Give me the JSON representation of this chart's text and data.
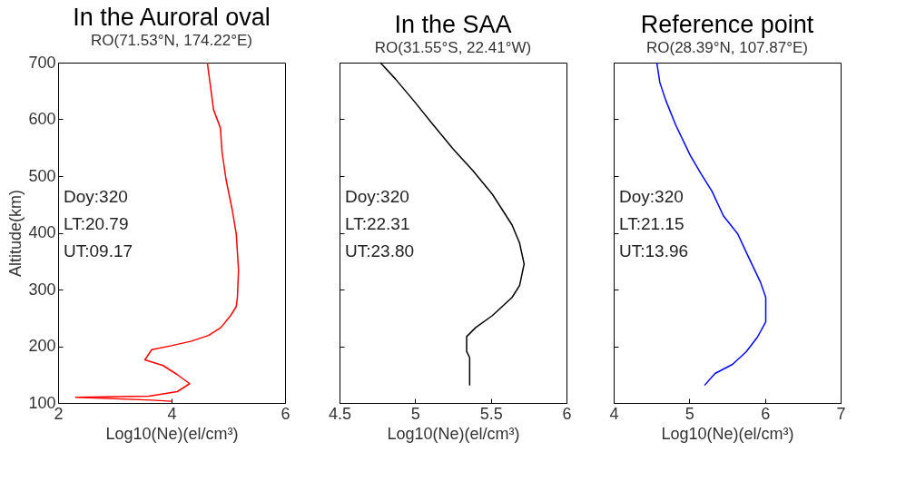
{
  "chart_data": [
    {
      "type": "line",
      "title": "In the Auroral oval",
      "subtitle": "RO(71.53°N, 174.22°E)",
      "xlabel": "Log10(Ne)(el/cm³)",
      "ylabel": "Altitude(km)",
      "xlim": [
        2,
        6
      ],
      "xticks": [
        2,
        4,
        6
      ],
      "ylim": [
        100,
        700
      ],
      "yticks": [
        100,
        200,
        300,
        400,
        500,
        600,
        700
      ],
      "grid": false,
      "marker": "none",
      "annotations": [
        "Doy:320",
        "LT:20.79",
        "UT:09.17"
      ],
      "series": [
        {
          "color": "#ff0000",
          "x": [
            4.63,
            4.74,
            4.86,
            4.89,
            4.96,
            5.07,
            5.14,
            5.18,
            5.16,
            5.14,
            5.04,
            4.87,
            4.65,
            4.35,
            4.0,
            3.65,
            3.53,
            3.85,
            4.1,
            4.32,
            4.1,
            3.6,
            2.31,
            3.65,
            4.0
          ],
          "values": [
            700,
            617,
            585,
            542,
            494,
            440,
            398,
            334,
            286,
            270,
            254,
            233,
            219,
            209,
            201,
            194,
            176,
            166,
            150,
            134,
            120,
            112,
            110,
            105,
            103
          ]
        }
      ]
    },
    {
      "type": "line",
      "title": "In the SAA",
      "subtitle": "RO(31.55°S, 22.41°W)",
      "xlabel": "Log10(Ne)(el/cm³)",
      "xlim": [
        4.5,
        6
      ],
      "xticks": [
        4.5,
        5,
        5.5,
        6
      ],
      "ylim": [
        100,
        700
      ],
      "yticks": [
        100,
        200,
        300,
        400,
        500,
        600,
        700
      ],
      "tick_labels": "x",
      "grid": false,
      "marker": "none",
      "annotations": [
        "Doy:320",
        "LT:22.31",
        "UT:23.80"
      ],
      "series": [
        {
          "color": "#000000",
          "x": [
            4.77,
            4.87,
            4.99,
            5.12,
            5.25,
            5.38,
            5.51,
            5.64,
            5.69,
            5.72,
            5.69,
            5.64,
            5.51,
            5.4,
            5.34,
            5.34,
            5.36,
            5.36
          ],
          "values": [
            700,
            671,
            633,
            590,
            548,
            510,
            468,
            414,
            382,
            345,
            307,
            286,
            254,
            233,
            217,
            191,
            180,
            131
          ]
        }
      ]
    },
    {
      "type": "line",
      "title": "Reference point",
      "subtitle": "RO(28.39°N, 107.87°E)",
      "xlabel": "Log10(Ne)(el/cm³)",
      "xlim": [
        4,
        7
      ],
      "xticks": [
        4,
        5,
        6,
        7
      ],
      "ylim": [
        100,
        700
      ],
      "yticks": [
        100,
        200,
        300,
        400,
        500,
        600,
        700
      ],
      "tick_labels": "x",
      "grid": false,
      "marker": "none",
      "annotations": [
        "Doy:320",
        "LT:21.15",
        "UT:13.96"
      ],
      "series": [
        {
          "color": "#0000ff",
          "x": [
            4.57,
            4.61,
            4.69,
            4.82,
            5.01,
            5.15,
            5.3,
            5.45,
            5.64,
            5.79,
            5.94,
            6.01,
            6.01,
            5.9,
            5.75,
            5.57,
            5.34,
            5.2
          ],
          "values": [
            700,
            665,
            633,
            590,
            537,
            505,
            473,
            430,
            398,
            355,
            313,
            286,
            243,
            216,
            190,
            168,
            152,
            131
          ]
        }
      ]
    }
  ]
}
